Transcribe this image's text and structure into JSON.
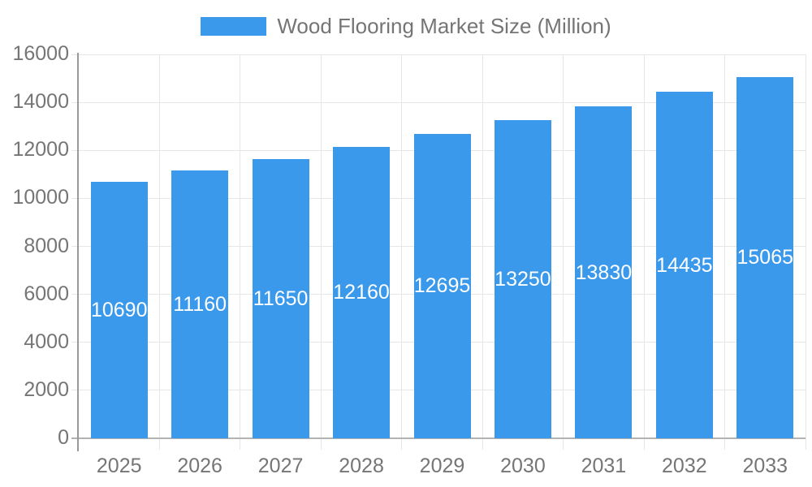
{
  "legend": {
    "label": "Wood Flooring Market Size (Million)"
  },
  "colors": {
    "bar": "#3b99ec",
    "grid": "#e6e6e6",
    "axis_line": "#999999",
    "baseline": "#b3b3b3",
    "tick_text": "#757575",
    "value_text": "#ffffff",
    "background": "#ffffff"
  },
  "chart_data": {
    "type": "bar",
    "title": "Wood Flooring Market Size (Million)",
    "categories": [
      "2025",
      "2026",
      "2027",
      "2028",
      "2029",
      "2030",
      "2031",
      "2032",
      "2033"
    ],
    "values": [
      10690,
      11160,
      11650,
      12160,
      12695,
      13250,
      13830,
      14435,
      15065
    ],
    "series": [
      {
        "name": "Wood Flooring Market Size (Million)",
        "values": [
          10690,
          11160,
          11650,
          12160,
          12695,
          13250,
          13830,
          14435,
          15065
        ]
      }
    ],
    "xlabel": "",
    "ylabel": "",
    "ylim": [
      0,
      16000
    ],
    "ytick_step": 2000,
    "yticks": [
      0,
      2000,
      4000,
      6000,
      8000,
      10000,
      12000,
      14000,
      16000
    ],
    "grid": true,
    "legend_position": "top-center",
    "value_labels_position": "inside-center"
  }
}
